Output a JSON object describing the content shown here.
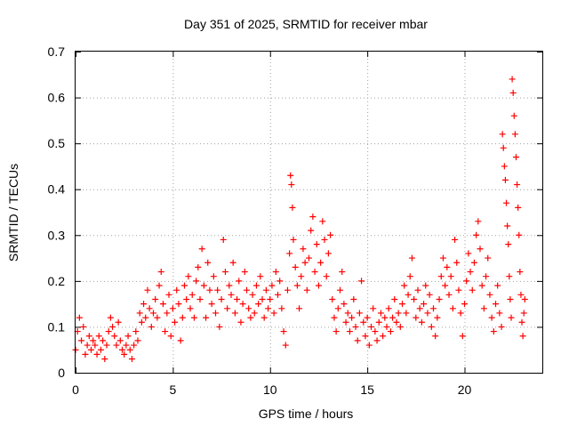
{
  "chart_data": {
    "type": "scatter",
    "title": "Day 351 of 2025, SRMTID for receiver mbar",
    "xlabel": "GPS time / hours",
    "ylabel": "SRMTID / TECUs",
    "xlim": [
      0,
      24
    ],
    "ylim": [
      0,
      0.7
    ],
    "x_ticks": [
      0,
      5,
      10,
      15,
      20
    ],
    "x_tick_labels": [
      "0",
      "5",
      "10",
      "15",
      "20"
    ],
    "y_ticks": [
      0,
      0.1,
      0.2,
      0.3,
      0.4,
      0.5,
      0.6,
      0.7
    ],
    "y_tick_labels": [
      "0",
      "0.1",
      "0.2",
      "0.3",
      "0.4",
      "0.5",
      "0.6",
      "0.7"
    ],
    "grid": true,
    "marker": "+",
    "color": "#ff0000",
    "series": [
      {
        "name": "SRMTID",
        "points": [
          [
            0.0,
            0.05
          ],
          [
            0.1,
            0.09
          ],
          [
            0.2,
            0.12
          ],
          [
            0.3,
            0.07
          ],
          [
            0.4,
            0.1
          ],
          [
            0.5,
            0.04
          ],
          [
            0.6,
            0.06
          ],
          [
            0.7,
            0.08
          ],
          [
            0.8,
            0.05
          ],
          [
            0.9,
            0.07
          ],
          [
            1.0,
            0.06
          ],
          [
            1.1,
            0.04
          ],
          [
            1.2,
            0.08
          ],
          [
            1.3,
            0.05
          ],
          [
            1.4,
            0.07
          ],
          [
            1.5,
            0.03
          ],
          [
            1.6,
            0.06
          ],
          [
            1.7,
            0.09
          ],
          [
            1.8,
            0.12
          ],
          [
            1.9,
            0.1
          ],
          [
            2.0,
            0.08
          ],
          [
            2.1,
            0.06
          ],
          [
            2.2,
            0.11
          ],
          [
            2.3,
            0.07
          ],
          [
            2.4,
            0.05
          ],
          [
            2.5,
            0.04
          ],
          [
            2.6,
            0.06
          ],
          [
            2.7,
            0.08
          ],
          [
            2.8,
            0.05
          ],
          [
            2.9,
            0.03
          ],
          [
            3.0,
            0.06
          ],
          [
            3.1,
            0.09
          ],
          [
            3.2,
            0.07
          ],
          [
            3.3,
            0.13
          ],
          [
            3.4,
            0.11
          ],
          [
            3.5,
            0.15
          ],
          [
            3.6,
            0.12
          ],
          [
            3.7,
            0.18
          ],
          [
            3.8,
            0.14
          ],
          [
            3.9,
            0.1
          ],
          [
            4.0,
            0.13
          ],
          [
            4.1,
            0.16
          ],
          [
            4.2,
            0.12
          ],
          [
            4.3,
            0.19
          ],
          [
            4.4,
            0.22
          ],
          [
            4.5,
            0.15
          ],
          [
            4.6,
            0.09
          ],
          [
            4.7,
            0.13
          ],
          [
            4.8,
            0.17
          ],
          [
            4.9,
            0.08
          ],
          [
            5.0,
            0.14
          ],
          [
            5.1,
            0.11
          ],
          [
            5.2,
            0.18
          ],
          [
            5.3,
            0.15
          ],
          [
            5.4,
            0.07
          ],
          [
            5.5,
            0.12
          ],
          [
            5.6,
            0.19
          ],
          [
            5.7,
            0.16
          ],
          [
            5.8,
            0.21
          ],
          [
            5.9,
            0.14
          ],
          [
            6.0,
            0.17
          ],
          [
            6.1,
            0.12
          ],
          [
            6.2,
            0.2
          ],
          [
            6.3,
            0.23
          ],
          [
            6.4,
            0.16
          ],
          [
            6.5,
            0.27
          ],
          [
            6.6,
            0.19
          ],
          [
            6.7,
            0.12
          ],
          [
            6.8,
            0.24
          ],
          [
            6.9,
            0.18
          ],
          [
            7.0,
            0.15
          ],
          [
            7.1,
            0.21
          ],
          [
            7.2,
            0.13
          ],
          [
            7.3,
            0.18
          ],
          [
            7.4,
            0.1
          ],
          [
            7.5,
            0.16
          ],
          [
            7.6,
            0.29
          ],
          [
            7.7,
            0.22
          ],
          [
            7.8,
            0.14
          ],
          [
            7.9,
            0.19
          ],
          [
            8.0,
            0.17
          ],
          [
            8.1,
            0.24
          ],
          [
            8.2,
            0.13
          ],
          [
            8.3,
            0.16
          ],
          [
            8.4,
            0.2
          ],
          [
            8.5,
            0.11
          ],
          [
            8.6,
            0.15
          ],
          [
            8.7,
            0.22
          ],
          [
            8.8,
            0.18
          ],
          [
            8.9,
            0.14
          ],
          [
            9.0,
            0.12
          ],
          [
            9.1,
            0.17
          ],
          [
            9.2,
            0.13
          ],
          [
            9.3,
            0.19
          ],
          [
            9.4,
            0.15
          ],
          [
            9.5,
            0.21
          ],
          [
            9.6,
            0.16
          ],
          [
            9.7,
            0.12
          ],
          [
            9.8,
            0.18
          ],
          [
            9.9,
            0.14
          ],
          [
            10.0,
            0.16
          ],
          [
            10.1,
            0.19
          ],
          [
            10.2,
            0.13
          ],
          [
            10.3,
            0.22
          ],
          [
            10.4,
            0.17
          ],
          [
            10.5,
            0.2
          ],
          [
            10.6,
            0.14
          ],
          [
            10.7,
            0.09
          ],
          [
            10.8,
            0.06
          ],
          [
            10.9,
            0.18
          ],
          [
            11.0,
            0.26
          ],
          [
            11.05,
            0.43
          ],
          [
            11.1,
            0.41
          ],
          [
            11.15,
            0.36
          ],
          [
            11.2,
            0.29
          ],
          [
            11.3,
            0.23
          ],
          [
            11.4,
            0.19
          ],
          [
            11.5,
            0.14
          ],
          [
            11.6,
            0.21
          ],
          [
            11.7,
            0.27
          ],
          [
            11.8,
            0.24
          ],
          [
            11.9,
            0.18
          ],
          [
            12.0,
            0.25
          ],
          [
            12.1,
            0.31
          ],
          [
            12.2,
            0.34
          ],
          [
            12.3,
            0.22
          ],
          [
            12.4,
            0.28
          ],
          [
            12.5,
            0.19
          ],
          [
            12.6,
            0.24
          ],
          [
            12.7,
            0.33
          ],
          [
            12.8,
            0.29
          ],
          [
            12.9,
            0.21
          ],
          [
            13.0,
            0.26
          ],
          [
            13.1,
            0.3
          ],
          [
            13.2,
            0.16
          ],
          [
            13.3,
            0.12
          ],
          [
            13.4,
            0.09
          ],
          [
            13.5,
            0.14
          ],
          [
            13.6,
            0.18
          ],
          [
            13.7,
            0.22
          ],
          [
            13.8,
            0.15
          ],
          [
            13.9,
            0.11
          ],
          [
            14.0,
            0.13
          ],
          [
            14.1,
            0.09
          ],
          [
            14.2,
            0.12
          ],
          [
            14.3,
            0.16
          ],
          [
            14.4,
            0.1
          ],
          [
            14.5,
            0.07
          ],
          [
            14.6,
            0.13
          ],
          [
            14.7,
            0.2
          ],
          [
            14.8,
            0.11
          ],
          [
            14.9,
            0.08
          ],
          [
            15.0,
            0.12
          ],
          [
            15.1,
            0.06
          ],
          [
            15.2,
            0.1
          ],
          [
            15.3,
            0.14
          ],
          [
            15.4,
            0.09
          ],
          [
            15.5,
            0.07
          ],
          [
            15.6,
            0.11
          ],
          [
            15.7,
            0.13
          ],
          [
            15.8,
            0.08
          ],
          [
            15.9,
            0.12
          ],
          [
            16.0,
            0.1
          ],
          [
            16.1,
            0.14
          ],
          [
            16.2,
            0.09
          ],
          [
            16.3,
            0.12
          ],
          [
            16.4,
            0.16
          ],
          [
            16.5,
            0.11
          ],
          [
            16.6,
            0.13
          ],
          [
            16.7,
            0.1
          ],
          [
            16.8,
            0.15
          ],
          [
            16.9,
            0.19
          ],
          [
            17.0,
            0.13
          ],
          [
            17.1,
            0.17
          ],
          [
            17.2,
            0.21
          ],
          [
            17.3,
            0.25
          ],
          [
            17.4,
            0.16
          ],
          [
            17.5,
            0.12
          ],
          [
            17.6,
            0.18
          ],
          [
            17.7,
            0.14
          ],
          [
            17.8,
            0.11
          ],
          [
            17.9,
            0.15
          ],
          [
            18.0,
            0.19
          ],
          [
            18.1,
            0.13
          ],
          [
            18.2,
            0.17
          ],
          [
            18.3,
            0.1
          ],
          [
            18.4,
            0.14
          ],
          [
            18.5,
            0.08
          ],
          [
            18.6,
            0.12
          ],
          [
            18.7,
            0.16
          ],
          [
            18.8,
            0.21
          ],
          [
            18.9,
            0.25
          ],
          [
            19.0,
            0.19
          ],
          [
            19.1,
            0.23
          ],
          [
            19.2,
            0.17
          ],
          [
            19.3,
            0.21
          ],
          [
            19.4,
            0.14
          ],
          [
            19.5,
            0.29
          ],
          [
            19.6,
            0.24
          ],
          [
            19.7,
            0.18
          ],
          [
            19.8,
            0.13
          ],
          [
            19.9,
            0.08
          ],
          [
            20.0,
            0.15
          ],
          [
            20.1,
            0.2
          ],
          [
            20.2,
            0.26
          ],
          [
            20.3,
            0.22
          ],
          [
            20.4,
            0.18
          ],
          [
            20.5,
            0.24
          ],
          [
            20.6,
            0.3
          ],
          [
            20.7,
            0.33
          ],
          [
            20.8,
            0.27
          ],
          [
            20.9,
            0.19
          ],
          [
            21.0,
            0.14
          ],
          [
            21.1,
            0.21
          ],
          [
            21.2,
            0.25
          ],
          [
            21.3,
            0.17
          ],
          [
            21.4,
            0.12
          ],
          [
            21.5,
            0.09
          ],
          [
            21.6,
            0.15
          ],
          [
            21.7,
            0.19
          ],
          [
            21.8,
            0.13
          ],
          [
            21.9,
            0.1
          ],
          [
            21.95,
            0.52
          ],
          [
            22.0,
            0.49
          ],
          [
            22.05,
            0.45
          ],
          [
            22.1,
            0.42
          ],
          [
            22.15,
            0.37
          ],
          [
            22.2,
            0.32
          ],
          [
            22.25,
            0.28
          ],
          [
            22.3,
            0.21
          ],
          [
            22.35,
            0.16
          ],
          [
            22.4,
            0.12
          ],
          [
            22.45,
            0.64
          ],
          [
            22.5,
            0.61
          ],
          [
            22.55,
            0.56
          ],
          [
            22.6,
            0.52
          ],
          [
            22.65,
            0.47
          ],
          [
            22.7,
            0.41
          ],
          [
            22.75,
            0.36
          ],
          [
            22.8,
            0.3
          ],
          [
            22.85,
            0.22
          ],
          [
            22.9,
            0.17
          ],
          [
            22.95,
            0.11
          ],
          [
            23.0,
            0.08
          ],
          [
            23.05,
            0.13
          ],
          [
            23.1,
            0.16
          ]
        ]
      }
    ]
  }
}
